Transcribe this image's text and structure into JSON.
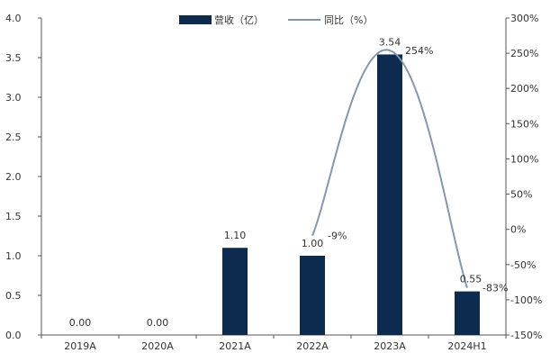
{
  "chart_data": {
    "type": "bar",
    "categories": [
      "2019A",
      "2020A",
      "2021A",
      "2022A",
      "2023A",
      "2024H1"
    ],
    "series": [
      {
        "name": "营收（亿）",
        "type": "bar",
        "axis": "left",
        "color": "#0d2a4f",
        "values": [
          0.0,
          0.0,
          1.1,
          1.0,
          3.54,
          0.55
        ],
        "labels": [
          "0.00",
          "0.00",
          "1.10",
          "1.00",
          "3.54",
          "0.55"
        ]
      },
      {
        "name": "同比（%）",
        "type": "line",
        "axis": "right",
        "color": "#8497b0",
        "values": [
          null,
          null,
          null,
          -9,
          254,
          -83
        ],
        "labels": [
          "",
          "",
          "",
          "-9%",
          "254%",
          "-83%"
        ]
      }
    ],
    "y_left": {
      "min": 0,
      "max": 4.0,
      "step": 0.5,
      "tick_labels": [
        "0.0",
        "0.5",
        "1.0",
        "1.5",
        "2.0",
        "2.5",
        "3.0",
        "3.5",
        "4.0"
      ]
    },
    "y_right": {
      "min": -150,
      "max": 300,
      "step": 50,
      "tick_labels": [
        "-150%",
        "-100%",
        "-50%",
        "0%",
        "50%",
        "100%",
        "150%",
        "200%",
        "250%",
        "300%"
      ]
    },
    "legend_position": "top-center",
    "grid": false,
    "title": "",
    "xlabel": "",
    "ylabel": ""
  }
}
